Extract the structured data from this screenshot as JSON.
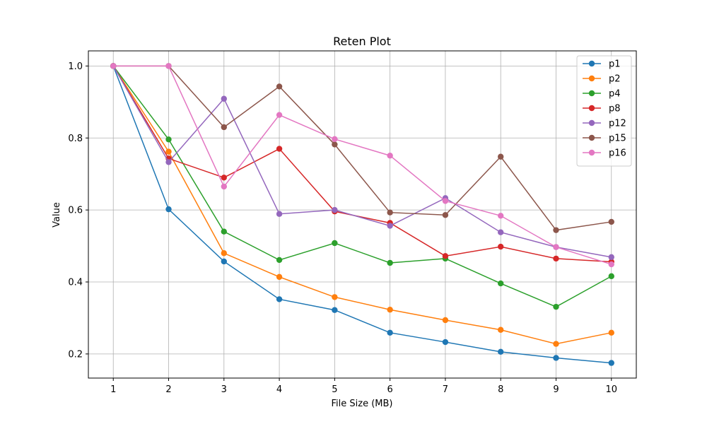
{
  "chart_data": {
    "type": "line",
    "title": "Reten Plot",
    "xlabel": "File Size (MB)",
    "ylabel": "Value",
    "x": [
      1,
      2,
      3,
      4,
      5,
      6,
      7,
      8,
      9,
      10
    ],
    "xlim": [
      0.55,
      10.45
    ],
    "ylim": [
      0.133,
      1.042
    ],
    "yticks": [
      0.2,
      0.4,
      0.6,
      0.8,
      1.0
    ],
    "yticks_labels": [
      "0.2",
      "0.4",
      "0.6",
      "0.8",
      "1.0"
    ],
    "xticks_labels": [
      "1",
      "2",
      "3",
      "4",
      "5",
      "6",
      "7",
      "8",
      "9",
      "10"
    ],
    "grid": true,
    "legend_position": "top-right",
    "series": [
      {
        "name": "p1",
        "color": "#1f77b4",
        "values": [
          1.0,
          0.602,
          0.457,
          0.352,
          0.322,
          0.259,
          0.233,
          0.206,
          0.189,
          0.175
        ]
      },
      {
        "name": "p2",
        "color": "#ff7f0e",
        "values": [
          1.0,
          0.762,
          0.48,
          0.414,
          0.358,
          0.323,
          0.294,
          0.267,
          0.228,
          0.259
        ]
      },
      {
        "name": "p4",
        "color": "#2ca02c",
        "values": [
          1.0,
          0.796,
          0.54,
          0.461,
          0.508,
          0.453,
          0.465,
          0.396,
          0.331,
          0.416
        ]
      },
      {
        "name": "p8",
        "color": "#d62728",
        "values": [
          1.0,
          0.743,
          0.69,
          0.77,
          0.596,
          0.564,
          0.472,
          0.498,
          0.465,
          0.456
        ]
      },
      {
        "name": "p12",
        "color": "#9467bd",
        "values": [
          1.0,
          0.733,
          0.909,
          0.589,
          0.6,
          0.556,
          0.633,
          0.538,
          0.497,
          0.469
        ]
      },
      {
        "name": "p15",
        "color": "#8c564b",
        "values": [
          1.0,
          1.0,
          0.83,
          0.943,
          0.782,
          0.593,
          0.586,
          0.748,
          0.544,
          0.567
        ]
      },
      {
        "name": "p16",
        "color": "#e377c2",
        "values": [
          1.0,
          1.0,
          0.665,
          0.864,
          0.797,
          0.751,
          0.625,
          0.584,
          0.497,
          0.449
        ]
      }
    ]
  }
}
